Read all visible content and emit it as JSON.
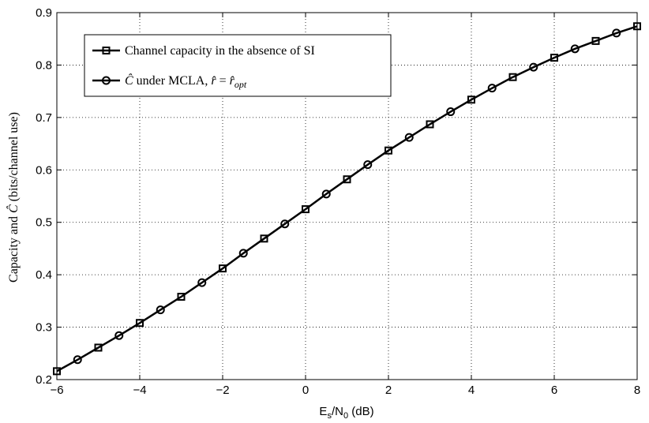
{
  "chart_data": {
    "type": "line",
    "xlabel": "E_s/N_0 (dB)",
    "ylabel": "Capacity and Ĉ (bits/channel use)",
    "xlim": [
      -6,
      8
    ],
    "ylim": [
      0.2,
      0.9
    ],
    "x_ticks": [
      -6,
      -4,
      -2,
      0,
      2,
      4,
      6,
      8
    ],
    "y_ticks": [
      0.2,
      0.3,
      0.4,
      0.5,
      0.6,
      0.7,
      0.8,
      0.9
    ],
    "x_tick_labels": [
      "−6",
      "−4",
      "−2",
      "0",
      "2",
      "4",
      "6",
      "8"
    ],
    "y_tick_labels": [
      "0.2",
      "0.3",
      "0.4",
      "0.5",
      "0.6",
      "0.7",
      "0.8",
      "0.9"
    ],
    "grid": true,
    "legend_position": "top-left",
    "legend": [
      "Channel capacity in the absence of SI",
      "Ĉ under MCLA, r̂ = r̂_opt"
    ],
    "series": [
      {
        "name": "Channel capacity in the absence of SI",
        "marker": "square",
        "color": "#000000",
        "x": [
          -6,
          -5,
          -4,
          -3,
          -2,
          -1,
          0,
          1,
          2,
          3,
          4,
          5,
          6,
          7,
          8
        ],
        "y": [
          0.216,
          0.261,
          0.308,
          0.358,
          0.412,
          0.469,
          0.525,
          0.582,
          0.637,
          0.687,
          0.734,
          0.777,
          0.814,
          0.846,
          0.874
        ]
      },
      {
        "name": "Ĉ under MCLA, r̂ = r̂_opt",
        "marker": "circle",
        "color": "#000000",
        "x": [
          -5.5,
          -4.5,
          -3.5,
          -2.5,
          -1.5,
          -0.5,
          0.5,
          1.5,
          2.5,
          3.5,
          4.5,
          5.5,
          6.5,
          7.5
        ],
        "y": [
          0.238,
          0.284,
          0.333,
          0.385,
          0.441,
          0.497,
          0.554,
          0.61,
          0.662,
          0.711,
          0.756,
          0.796,
          0.831,
          0.861
        ]
      }
    ]
  }
}
